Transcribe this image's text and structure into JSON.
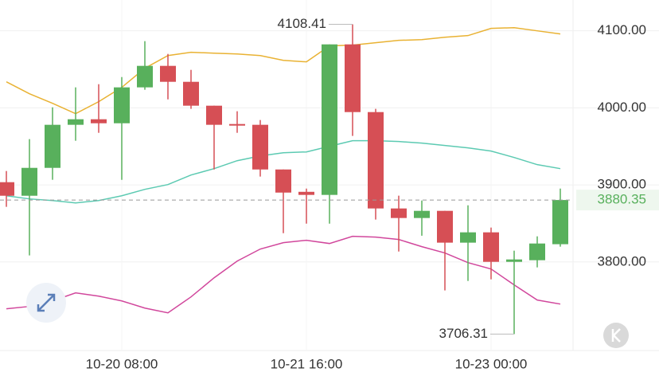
{
  "chart_data": {
    "type": "candlestick",
    "categories": [
      null,
      null,
      null,
      null,
      null,
      "10-20 08:00",
      null,
      null,
      null,
      null,
      null,
      null,
      null,
      "10-21 16:00",
      null,
      null,
      null,
      null,
      null,
      null,
      null,
      "10-23 00:00",
      null,
      null,
      null
    ],
    "open": [
      3903.5,
      3885.9,
      3922.1,
      3978.0,
      3985.2,
      3980.0,
      4026.6,
      4054.5,
      4033.8,
      4002.8,
      3979.0,
      3978.0,
      3920.0,
      3891.0,
      3887.0,
      4082.4,
      3994.5,
      3869.4,
      3857.0,
      3866.3,
      3825.0,
      3838.4,
      3800.1,
      3802.2,
      3823.0
    ],
    "high": [
      3918.0,
      3959.4,
      4000.7,
      4026.6,
      4030.7,
      4040.0,
      4086.6,
      4070.0,
      4049.3,
      4002.8,
      3995.6,
      3984.2,
      3920.0,
      3895.2,
      4082.4,
      4108.41,
      3998.7,
      3886.0,
      3879.7,
      3866.3,
      3873.5,
      3844.6,
      3814.6,
      3833.2,
      3895.2
    ],
    "low": [
      3871.5,
      3808.4,
      3906.6,
      3957.3,
      3967.6,
      3906.6,
      4023.5,
      4011.0,
      3998.7,
      3920.0,
      3967.6,
      3910.8,
      3837.3,
      3849.7,
      3849.7,
      3963.5,
      3855.0,
      3813.5,
      3834.0,
      3763.0,
      3775.3,
      3777.4,
      3706.31,
      3792.9,
      3819.8
    ],
    "close": [
      3885.9,
      3922.1,
      3978.0,
      3985.2,
      3980.0,
      4026.6,
      4054.5,
      4033.8,
      4002.8,
      3978.0,
      3977.0,
      3920.0,
      3890.0,
      3887.0,
      4082.4,
      3994.5,
      3869.4,
      3857.0,
      3866.3,
      3825.0,
      3838.4,
      3800.1,
      3803.2,
      3823.9,
      3880.35
    ],
    "up_color": "#58b05c",
    "down_color": "#d64f55",
    "bands": [
      {
        "color": "#e9b233",
        "values": [
          4033.8,
          4018.3,
          4005.9,
          3992.5,
          4008.0,
          4026.6,
          4051.4,
          4067.9,
          4072.1,
          4071.0,
          4070.0,
          4067.9,
          4061.7,
          4059.7,
          4080.4,
          4081.4,
          4084.5,
          4087.6,
          4088.6,
          4091.7,
          4093.8,
          4103.1,
          4104.1,
          4100.0,
          4095.9
        ]
      },
      {
        "color": "#5ccab2",
        "values": [
          3885.9,
          3881.8,
          3879.7,
          3876.6,
          3879.7,
          3885.9,
          3894.2,
          3900.4,
          3912.8,
          3921.1,
          3931.4,
          3937.6,
          3941.7,
          3942.8,
          3950.1,
          3957.3,
          3957.3,
          3956.3,
          3954.2,
          3951.1,
          3948.0,
          3943.9,
          3935.6,
          3926.3,
          3921.1
        ]
      },
      {
        "color": "#d1479c",
        "values": [
          3739.1,
          3742.2,
          3749.4,
          3759.8,
          3755.6,
          3749.4,
          3740.1,
          3733.9,
          3754.6,
          3779.4,
          3801.1,
          3816.7,
          3825.0,
          3828.1,
          3823.9,
          3833.2,
          3832.2,
          3829.1,
          3819.8,
          3811.6,
          3799.1,
          3790.8,
          3770.2,
          3750.5,
          3745.3
        ]
      }
    ],
    "ylim": [
      3685,
      4140
    ],
    "yticks": [
      {
        "value": 3800,
        "label": "3800.00"
      },
      {
        "value": 3900,
        "label": "3900.00"
      },
      {
        "value": 4000,
        "label": "4000.00"
      },
      {
        "value": 4100,
        "label": "4100.00"
      }
    ],
    "grid": true
  }
}
